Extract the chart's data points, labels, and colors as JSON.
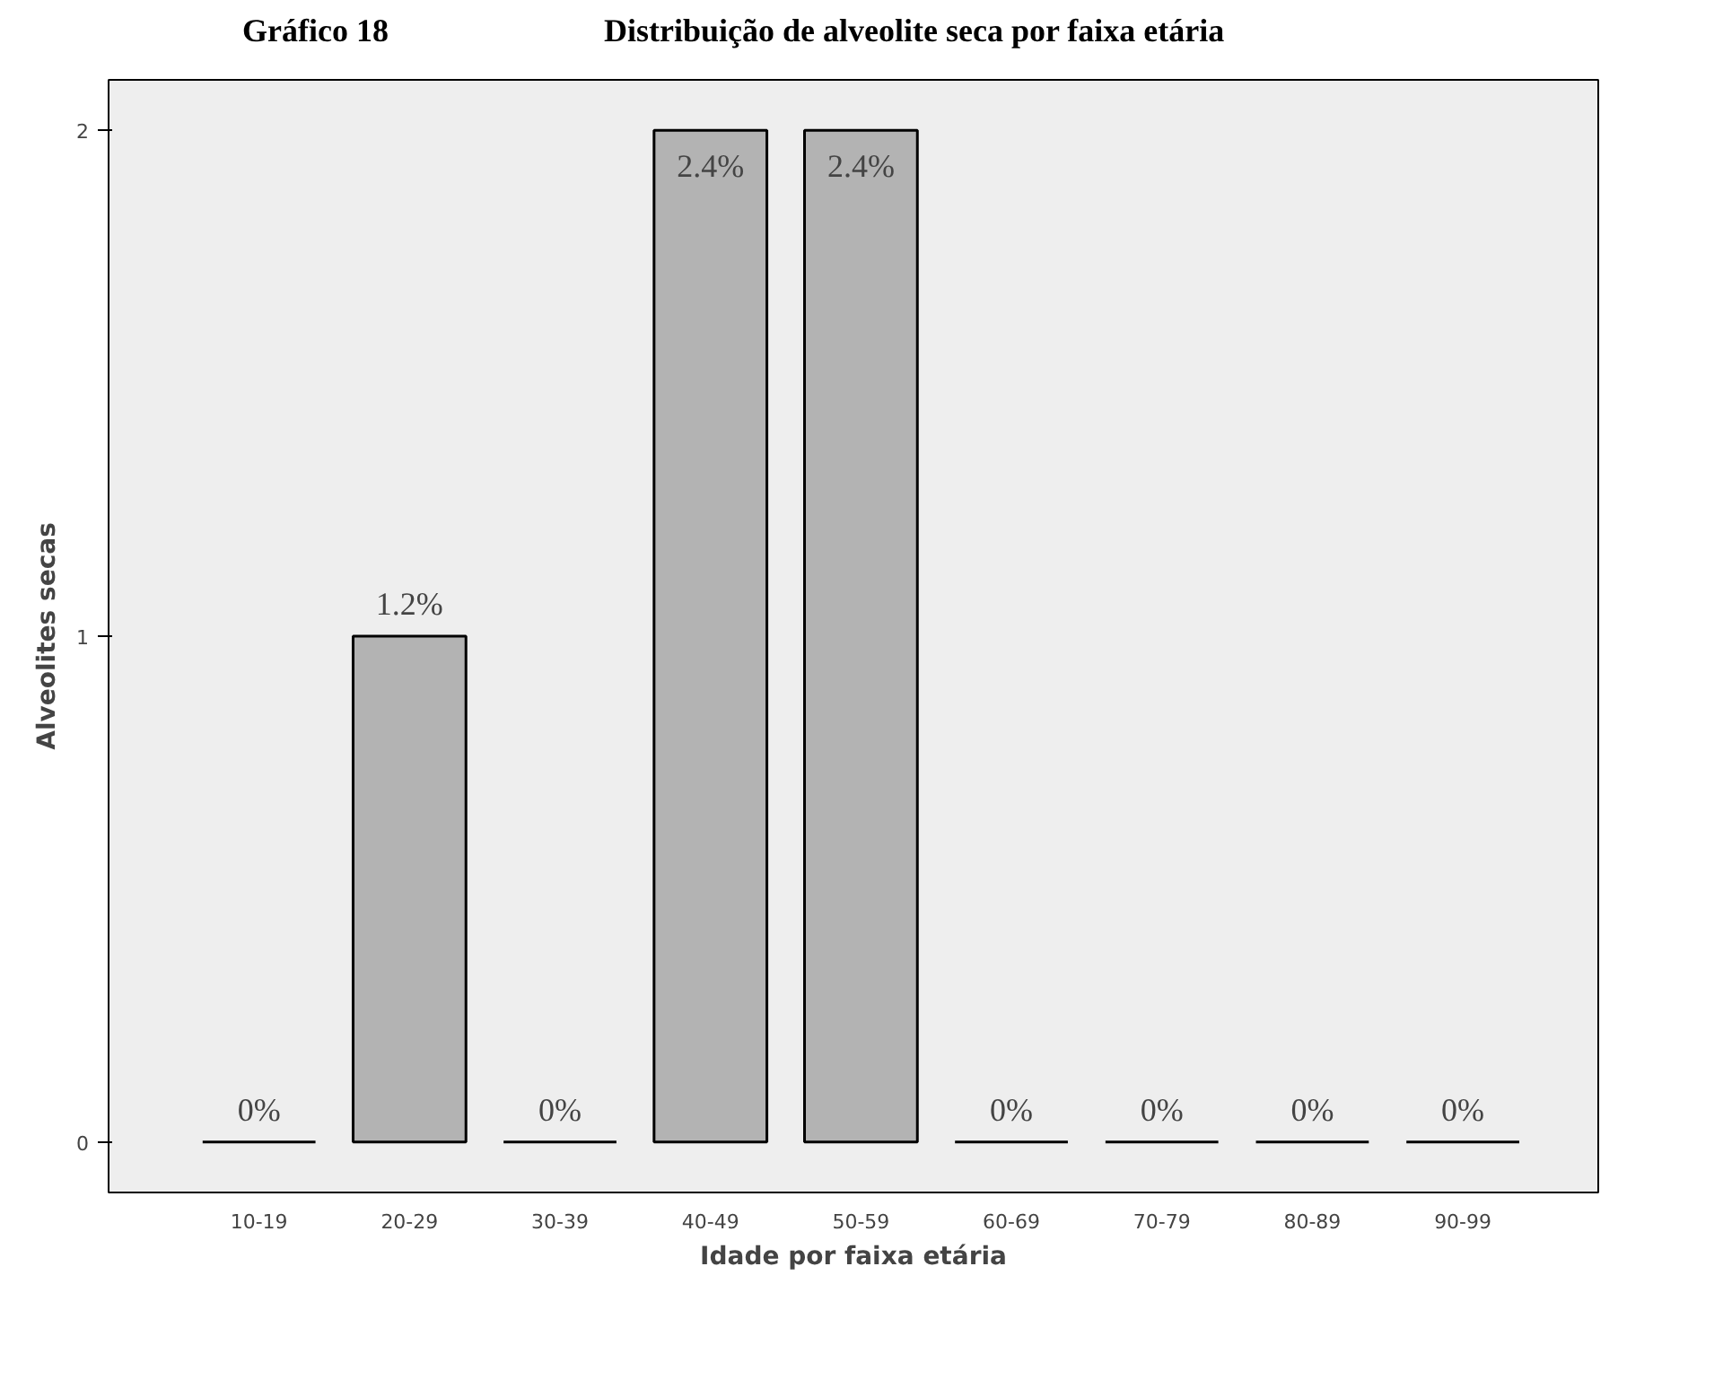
{
  "chart_data": {
    "type": "bar",
    "title": "Distribuição de alveolite seca por faixa etária",
    "xlabel": "Idade por faixa etária",
    "ylabel": "Alveolites secas",
    "categories": [
      "10-19",
      "20-29",
      "30-39",
      "40-49",
      "50-59",
      "60-69",
      "70-79",
      "80-89",
      "90-99"
    ],
    "values": [
      0,
      1,
      0,
      2,
      2,
      0,
      0,
      0,
      0
    ],
    "annotations": [
      "Gráfico 18",
      {
        "text": "0%",
        "x": "10-19",
        "y": 0
      },
      {
        "text": "1.2%",
        "x": "20-29",
        "y": 1
      },
      {
        "text": "0%",
        "x": "30-39",
        "y": 0
      },
      {
        "text": "2.4%",
        "x": "40-49",
        "y": 2
      },
      {
        "text": "2.4%",
        "x": "50-59",
        "y": 2
      },
      {
        "text": "0%",
        "x": "60-69",
        "y": 0
      },
      {
        "text": "0%",
        "x": "70-79",
        "y": 0
      },
      {
        "text": "0%",
        "x": "80-89",
        "y": 0
      },
      {
        "text": "0%",
        "x": "90-99",
        "y": 0
      }
    ],
    "colors": [
      "#000000",
      "#b3b3b3",
      "#000000",
      "#b3b3b3",
      "#b3b3b3",
      "#000000",
      "#000000",
      "#000000",
      "#000000"
    ],
    "ylim": [
      -0.1,
      2.1
    ],
    "yticks": [
      0,
      1,
      2
    ],
    "grid": false
  }
}
